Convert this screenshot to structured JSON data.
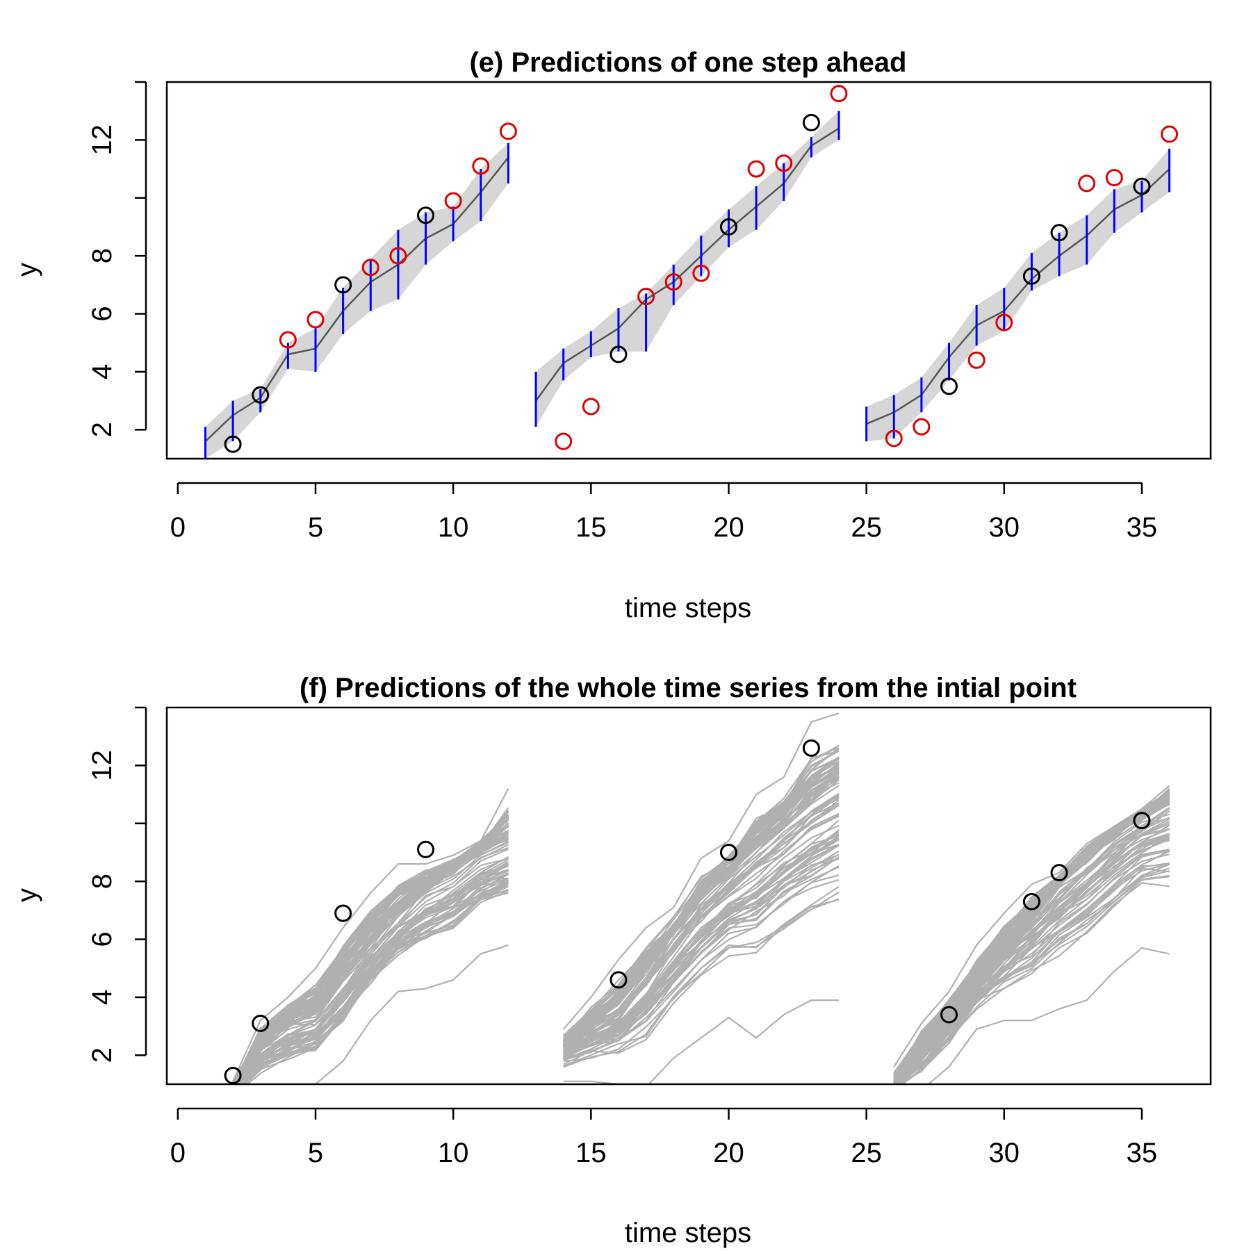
{
  "colors": {
    "background": "#ffffff",
    "observed_point": "#000000",
    "unobserved_point": "#e00000",
    "prediction_line": "#555555",
    "prediction_band": "#d6d6d6",
    "interval_bar": "#0000ff",
    "trajectory": "#b0b0b0"
  },
  "chart_data": [
    {
      "type": "line",
      "title": "(e) Predictions of one step ahead",
      "xlabel": "time steps",
      "ylabel": "y",
      "xlim": [
        -0.4,
        37.5
      ],
      "ylim": [
        1.0,
        14.0
      ],
      "x_ticks": [
        0,
        5,
        10,
        15,
        20,
        25,
        30,
        35
      ],
      "y_ticks": [
        2,
        4,
        6,
        8,
        10,
        12,
        14
      ],
      "y_tick_labels": [
        "2",
        "4",
        "6",
        "8",
        "",
        "12",
        ""
      ],
      "grid": false,
      "prediction_segments": [
        {
          "x": [
            1,
            2,
            3,
            4,
            5,
            6,
            7,
            8,
            9,
            10,
            11,
            12
          ],
          "mean": [
            1.6,
            2.5,
            3.1,
            4.6,
            4.8,
            6.1,
            7.1,
            7.7,
            8.6,
            9.1,
            10.2,
            11.4
          ],
          "lower": [
            1.0,
            1.6,
            2.6,
            4.1,
            4.0,
            5.3,
            6.1,
            6.5,
            7.7,
            8.5,
            9.2,
            10.5
          ],
          "upper": [
            2.1,
            3.0,
            3.4,
            5.0,
            5.5,
            6.9,
            7.9,
            8.9,
            9.5,
            9.7,
            11.0,
            11.9
          ]
        },
        {
          "x": [
            13,
            14,
            15,
            16,
            17,
            18,
            19,
            20,
            21,
            22,
            23,
            24
          ],
          "mean": [
            3.0,
            4.3,
            4.9,
            5.5,
            6.5,
            7.1,
            8.0,
            8.9,
            9.7,
            10.5,
            11.8,
            12.4
          ],
          "lower": [
            2.1,
            3.7,
            4.5,
            4.7,
            4.7,
            6.3,
            7.3,
            8.3,
            8.9,
            9.9,
            11.4,
            12.0
          ],
          "upper": [
            4.0,
            4.8,
            5.4,
            6.2,
            6.7,
            7.7,
            8.7,
            9.6,
            10.4,
            11.2,
            12.1,
            13.0
          ]
        },
        {
          "x": [
            25,
            26,
            27,
            28,
            29,
            30,
            31,
            32,
            33,
            34,
            35,
            36
          ],
          "mean": [
            2.2,
            2.6,
            3.2,
            4.5,
            5.6,
            6.1,
            7.2,
            8.0,
            8.7,
            9.6,
            10.1,
            11.0
          ],
          "lower": [
            1.6,
            1.7,
            2.6,
            3.7,
            4.9,
            5.4,
            6.8,
            7.3,
            7.7,
            8.8,
            9.5,
            10.2
          ],
          "upper": [
            2.8,
            3.2,
            3.8,
            5.0,
            6.3,
            6.9,
            8.1,
            8.8,
            9.4,
            10.3,
            10.6,
            11.7
          ]
        }
      ],
      "observed_points": {
        "x": [
          2,
          3,
          6,
          9,
          16,
          20,
          23,
          28,
          31,
          32,
          35
        ],
        "y": [
          1.5,
          3.2,
          7.0,
          9.4,
          4.6,
          9.0,
          12.6,
          3.5,
          7.3,
          8.8,
          10.4
        ]
      },
      "unobserved_points": {
        "x": [
          4,
          5,
          7,
          8,
          10,
          11,
          12,
          14,
          15,
          17,
          18,
          19,
          21,
          22,
          24,
          26,
          27,
          29,
          30,
          33,
          34,
          36
        ],
        "y": [
          5.1,
          5.8,
          7.6,
          8.0,
          9.9,
          11.1,
          12.3,
          1.6,
          2.8,
          6.6,
          7.1,
          7.4,
          11.0,
          11.2,
          13.6,
          1.7,
          2.1,
          4.4,
          5.7,
          10.5,
          10.7,
          12.2
        ]
      }
    },
    {
      "type": "line",
      "title": "(f) Predictions of the whole time series from the intial point",
      "xlabel": "time steps",
      "ylabel": "y",
      "xlim": [
        -0.4,
        37.5
      ],
      "ylim": [
        1.0,
        14.0
      ],
      "x_ticks": [
        0,
        5,
        10,
        15,
        20,
        25,
        30,
        35
      ],
      "y_ticks": [
        2,
        4,
        6,
        8,
        10,
        12,
        14
      ],
      "y_tick_labels": [
        "2",
        "4",
        "6",
        "8",
        "",
        "12",
        ""
      ],
      "grid": false,
      "trajectory_segments": [
        {
          "x": [
            2,
            3,
            4,
            5,
            6,
            7,
            8,
            9,
            10,
            11,
            12
          ],
          "center": [
            0.9,
            2.4,
            3.2,
            3.5,
            4.7,
            5.9,
            6.9,
            7.8,
            8.4,
            9.1,
            9.5
          ],
          "upper": [
            1.1,
            3.2,
            4.0,
            5.0,
            6.4,
            7.6,
            8.6,
            8.6,
            8.9,
            9.4,
            11.2
          ],
          "lower": [
            0.6,
            0.6,
            0.7,
            1.0,
            1.8,
            3.2,
            4.2,
            4.3,
            4.6,
            5.5,
            5.8
          ]
        },
        {
          "x": [
            14,
            15,
            16,
            17,
            18,
            19,
            20,
            21,
            22,
            23,
            24
          ],
          "center": [
            2.3,
            3.0,
            3.6,
            4.8,
            6.1,
            7.3,
            8.2,
            9.1,
            9.9,
            10.7,
            11.4
          ],
          "upper": [
            2.9,
            4.0,
            5.3,
            6.4,
            7.1,
            8.8,
            9.4,
            11.0,
            11.6,
            13.5,
            13.8
          ],
          "lower": [
            1.1,
            1.1,
            1.0,
            0.9,
            1.9,
            2.6,
            3.3,
            2.6,
            3.4,
            3.9,
            3.9
          ]
        },
        {
          "x": [
            26,
            27,
            28,
            29,
            30,
            31,
            32,
            33,
            34,
            35,
            36
          ],
          "center": [
            1.0,
            2.3,
            3.4,
            4.6,
            5.8,
            6.8,
            7.9,
            8.8,
            9.6,
            10.3,
            10.8
          ],
          "upper": [
            1.6,
            3.1,
            4.2,
            5.8,
            6.9,
            7.9,
            8.3,
            9.3,
            9.9,
            10.5,
            11.3
          ],
          "lower": [
            0.8,
            0.8,
            1.6,
            2.9,
            3.2,
            3.2,
            3.6,
            3.9,
            4.9,
            5.7,
            5.5
          ]
        }
      ],
      "observed_points": {
        "x": [
          2,
          3,
          6,
          9,
          16,
          20,
          23,
          28,
          31,
          32,
          35
        ],
        "y": [
          1.3,
          3.1,
          6.9,
          9.1,
          4.6,
          9.0,
          12.6,
          3.4,
          7.3,
          8.3,
          10.1
        ]
      }
    }
  ]
}
